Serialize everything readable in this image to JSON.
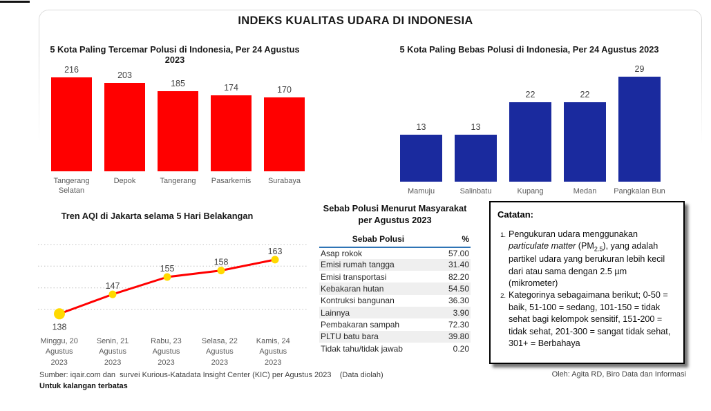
{
  "page": {
    "title": "INDEKS KUALITAS UDARA DI INDONESIA",
    "footer_left_line1": "Sumber: iqair.com dan  survei Kurious-Katadata Insight Center (KIC) per Agustus 2023    (Data diolah)",
    "footer_left_line2": "Untuk kalangan terbatas",
    "footer_right": "Oleh: Agita RD, Biro Data dan Informasi"
  },
  "colors": {
    "polluted_bar": "#ff0000",
    "clean_bar": "#1a2a9e",
    "trend_line": "#ff0000",
    "trend_marker": "#ffd900",
    "table_header_rule": "#2e74b5",
    "gridline": "#bfbfbf",
    "label_dark": "#404040",
    "label_gray": "#595959"
  },
  "chart_data": [
    {
      "id": "polluted_cities",
      "type": "bar",
      "title": "5 Kota Paling Tercemar Polusi di Indonesia, Per 24 Agustus 2023",
      "categories": [
        "Tangerang Selatan",
        "Depok",
        "Tangerang",
        "Pasarkemis",
        "Surabaya"
      ],
      "values": [
        216,
        203,
        185,
        174,
        170
      ],
      "bar_color": "#ff0000",
      "ylim": [
        0,
        216
      ],
      "data_labels": true,
      "axes": "hidden",
      "grid": false
    },
    {
      "id": "clean_cities",
      "type": "bar",
      "title": "5 Kota Paling Bebas Polusi di Indonesia, Per 24 Agustus 2023",
      "categories": [
        "Mamuju",
        "Salinbatu",
        "Kupang",
        "Medan",
        "Pangkalan Bun"
      ],
      "values": [
        13,
        13,
        22,
        22,
        29
      ],
      "bar_color": "#1a2a9e",
      "ylim": [
        0,
        29
      ],
      "data_labels": true,
      "axes": "hidden",
      "grid": false
    },
    {
      "id": "jakarta_trend",
      "type": "line",
      "title": "Tren AQI di Jakarta selama 5 Hari Belakangan",
      "categories": [
        [
          "Minggu, 20",
          "Agustus",
          "2023"
        ],
        [
          "Senin, 21",
          "Agustus",
          "2023"
        ],
        [
          "Rabu, 23",
          "Agustus",
          "2023"
        ],
        [
          "Selasa, 22",
          "Agustus",
          "2023"
        ],
        [
          "Kamis, 24",
          "Agustus",
          "2023"
        ]
      ],
      "values": [
        138,
        147,
        155,
        158,
        163
      ],
      "line_color": "#ff0000",
      "marker_color": "#ffd900",
      "ylim": [
        130,
        172
      ],
      "gridlines": [
        140,
        150,
        160,
        170
      ],
      "grid_style": "dotted",
      "legend": "none"
    },
    {
      "id": "pollution_causes",
      "type": "table",
      "title_line1": "Sebab Polusi Menurut Masyarakat",
      "title_line2": "per Agustus 2023",
      "columns": [
        "Sebab Polusi",
        "%"
      ],
      "rows": [
        [
          "Asap rokok",
          "57.00"
        ],
        [
          "Emisi rumah tangga",
          "31.40"
        ],
        [
          "Emisi transportasi",
          "82.20"
        ],
        [
          "Kebakaran hutan",
          "54.50"
        ],
        [
          "Kontruksi bangunan",
          "36.30"
        ],
        [
          "Lainnya",
          "3.90"
        ],
        [
          "Pembakaran sampah",
          "72.30"
        ],
        [
          "PLTU batu bara",
          "39.80"
        ],
        [
          "Tidak tahu/tidak jawab",
          "0.20"
        ]
      ]
    }
  ],
  "notes": {
    "heading": "Catatan:",
    "item1": {
      "num": "1.",
      "pre": "Pengukuran udara menggunakan ",
      "italic": "particulate matter",
      "pm_open": " (PM",
      "pm_sub": "2.5",
      "post": "), yang adalah partikel udara yang berukuran lebih kecil dari atau sama dengan 2.5 µm (mikrometer)"
    },
    "item2": {
      "num": "2.",
      "text": "Kategorinya sebagaimana berikut; 0-50 = baik, 51-100 = sedang, 101-150 = tidak sehat bagi kelompok sensitif, 151-200 = tidak sehat, 201-300 = sangat tidak sehat, 301+ = Berbahaya"
    }
  }
}
